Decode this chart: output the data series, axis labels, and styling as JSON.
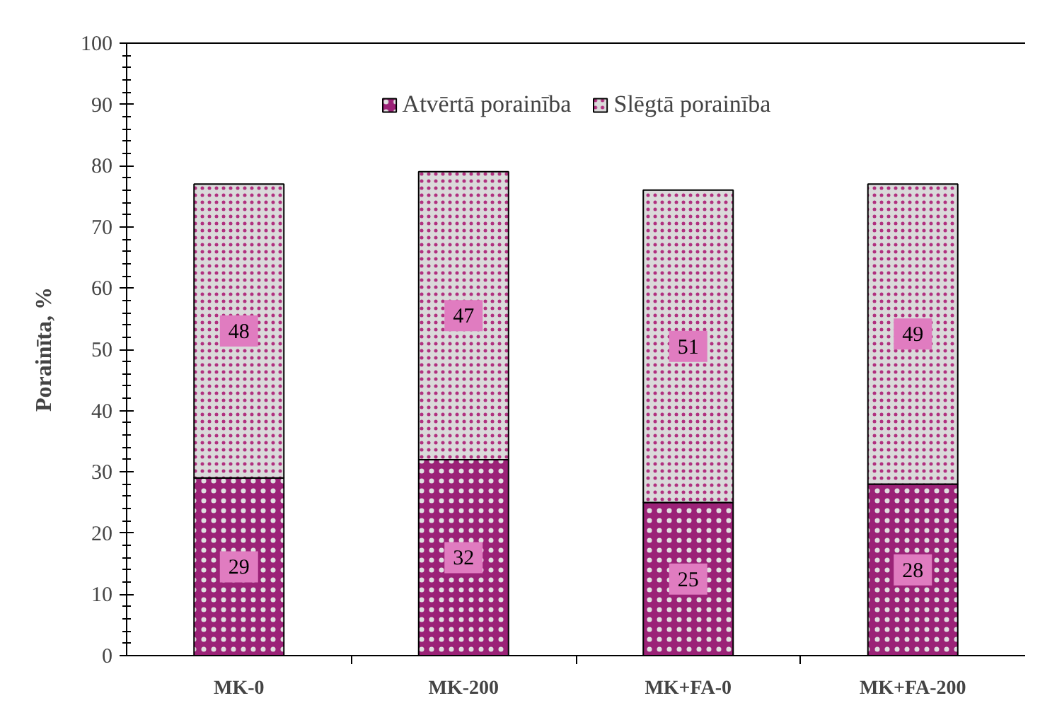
{
  "chart_data": {
    "type": "bar",
    "stacked": true,
    "ylabel": "Porainīta, %",
    "categories": [
      "MK-0",
      "MK-200",
      "MK+FA-0",
      "MK+FA-200"
    ],
    "series": [
      {
        "name": "Atvērtā porainība",
        "color": "#9b2277",
        "values": [
          29,
          32,
          25,
          28
        ]
      },
      {
        "name": "Slēgtā porainība",
        "color": "#dadada",
        "values": [
          48,
          47,
          51,
          49
        ]
      }
    ],
    "ylim": [
      0,
      100
    ],
    "yticks": [
      0,
      10,
      20,
      30,
      40,
      50,
      60,
      70,
      80,
      90,
      100
    ],
    "data_labels": true,
    "legend": "top"
  }
}
